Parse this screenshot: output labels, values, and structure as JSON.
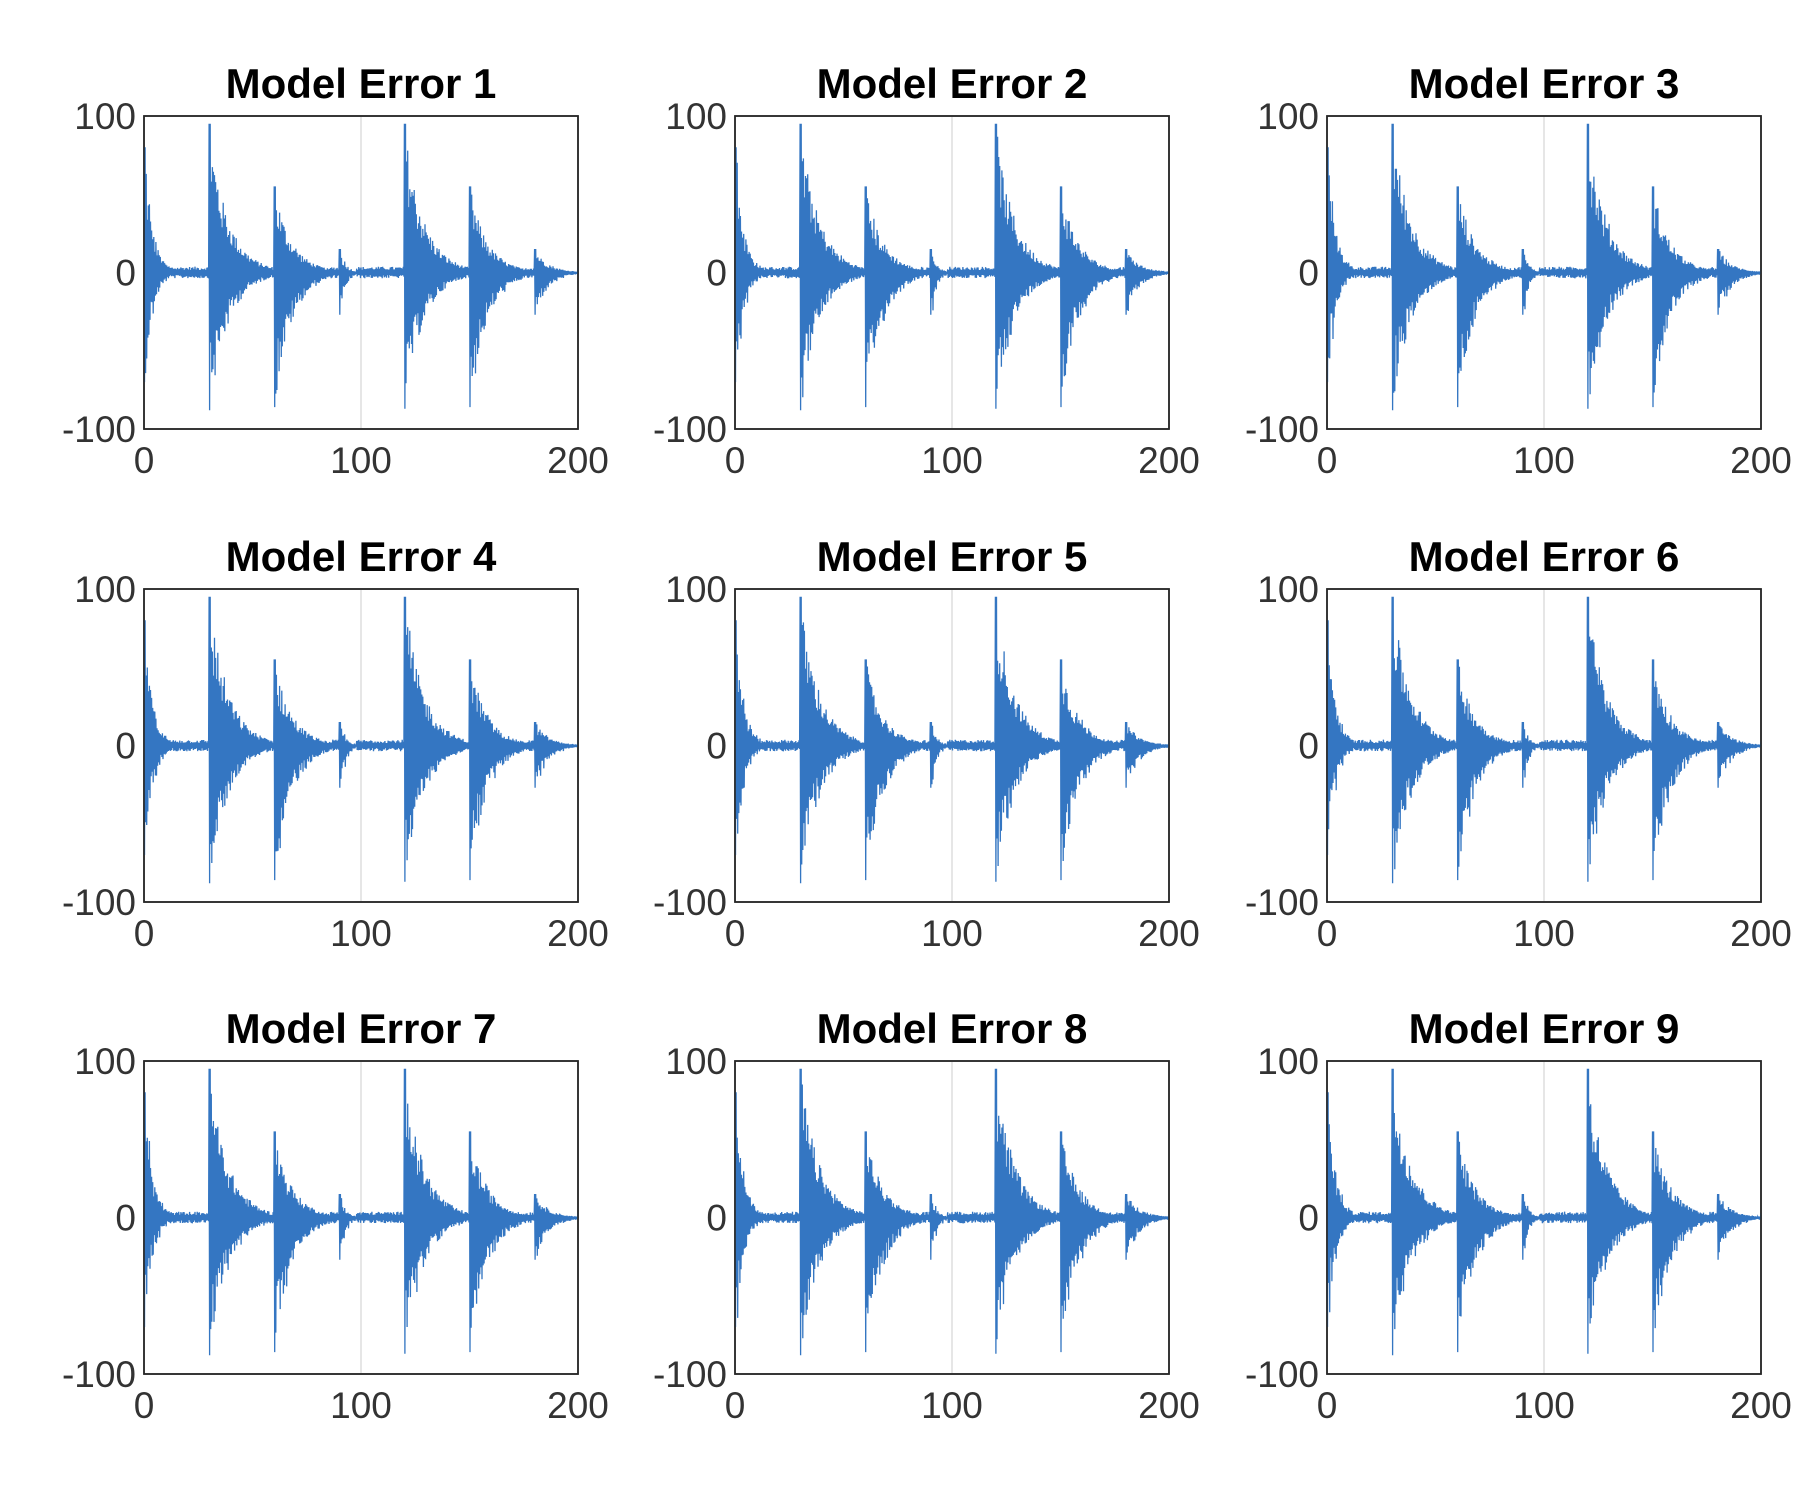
{
  "figure": {
    "background": "#ffffff",
    "rows": 3,
    "cols": 3
  },
  "chart_data": [
    {
      "type": "line",
      "title": "Model Error 1",
      "xlabel": "",
      "ylabel": "",
      "xlim": [
        0,
        200
      ],
      "ylim": [
        -100,
        100
      ],
      "xticks": [
        "0",
        "100",
        "200"
      ],
      "yticks": [
        "100",
        "0",
        "-100"
      ],
      "grid": "x-only",
      "series": [
        {
          "color": "#3476c2",
          "samples_per_unit": 4,
          "bursts": [
            {
              "x": 0,
              "peak": 80,
              "trough": -70,
              "len": 12
            },
            {
              "x": 30,
              "peak": 95,
              "trough": -88,
              "len": 28
            },
            {
              "x": 60,
              "peak": 55,
              "trough": -86,
              "len": 26
            },
            {
              "x": 90,
              "peak": 15,
              "trough": -27,
              "len": 8
            },
            {
              "x": 120,
              "peak": 95,
              "trough": -87,
              "len": 28
            },
            {
              "x": 150,
              "peak": 55,
              "trough": -86,
              "len": 26
            },
            {
              "x": 180,
              "peak": 15,
              "trough": -27,
              "len": 20
            }
          ]
        }
      ]
    },
    {
      "type": "line",
      "title": "Model Error 2",
      "xlabel": "",
      "ylabel": "",
      "xlim": [
        0,
        200
      ],
      "ylim": [
        -100,
        100
      ],
      "xticks": [
        "0",
        "100",
        "200"
      ],
      "yticks": [
        "100",
        "0",
        "-100"
      ],
      "grid": "x-only",
      "series": [
        {
          "color": "#3476c2",
          "samples_per_unit": 4,
          "bursts": [
            {
              "x": 0,
              "peak": 80,
              "trough": -70,
              "len": 12
            },
            {
              "x": 30,
              "peak": 95,
              "trough": -88,
              "len": 28
            },
            {
              "x": 60,
              "peak": 55,
              "trough": -86,
              "len": 26
            },
            {
              "x": 90,
              "peak": 15,
              "trough": -27,
              "len": 8
            },
            {
              "x": 120,
              "peak": 95,
              "trough": -87,
              "len": 28
            },
            {
              "x": 150,
              "peak": 55,
              "trough": -86,
              "len": 26
            },
            {
              "x": 180,
              "peak": 15,
              "trough": -27,
              "len": 20
            }
          ]
        }
      ]
    },
    {
      "type": "line",
      "title": "Model Error 3",
      "xlabel": "",
      "ylabel": "",
      "xlim": [
        0,
        200
      ],
      "ylim": [
        -100,
        100
      ],
      "xticks": [
        "0",
        "100",
        "200"
      ],
      "yticks": [
        "100",
        "0",
        "-100"
      ],
      "grid": "x-only",
      "series": [
        {
          "color": "#3476c2",
          "samples_per_unit": 4,
          "bursts": [
            {
              "x": 0,
              "peak": 80,
              "trough": -70,
              "len": 12
            },
            {
              "x": 30,
              "peak": 95,
              "trough": -88,
              "len": 28
            },
            {
              "x": 60,
              "peak": 55,
              "trough": -86,
              "len": 26
            },
            {
              "x": 90,
              "peak": 15,
              "trough": -27,
              "len": 8
            },
            {
              "x": 120,
              "peak": 95,
              "trough": -87,
              "len": 28
            },
            {
              "x": 150,
              "peak": 55,
              "trough": -86,
              "len": 26
            },
            {
              "x": 180,
              "peak": 15,
              "trough": -27,
              "len": 20
            }
          ]
        }
      ]
    },
    {
      "type": "line",
      "title": "Model Error 4",
      "xlabel": "",
      "ylabel": "",
      "xlim": [
        0,
        200
      ],
      "ylim": [
        -100,
        100
      ],
      "xticks": [
        "0",
        "100",
        "200"
      ],
      "yticks": [
        "100",
        "0",
        "-100"
      ],
      "grid": "x-only",
      "series": [
        {
          "color": "#3476c2",
          "samples_per_unit": 4,
          "bursts": [
            {
              "x": 0,
              "peak": 80,
              "trough": -70,
              "len": 12
            },
            {
              "x": 30,
              "peak": 95,
              "trough": -88,
              "len": 28
            },
            {
              "x": 60,
              "peak": 55,
              "trough": -86,
              "len": 26
            },
            {
              "x": 90,
              "peak": 15,
              "trough": -27,
              "len": 8
            },
            {
              "x": 120,
              "peak": 95,
              "trough": -87,
              "len": 28
            },
            {
              "x": 150,
              "peak": 55,
              "trough": -86,
              "len": 26
            },
            {
              "x": 180,
              "peak": 15,
              "trough": -27,
              "len": 20
            }
          ]
        }
      ]
    },
    {
      "type": "line",
      "title": "Model Error 5",
      "xlabel": "",
      "ylabel": "",
      "xlim": [
        0,
        200
      ],
      "ylim": [
        -100,
        100
      ],
      "xticks": [
        "0",
        "100",
        "200"
      ],
      "yticks": [
        "100",
        "0",
        "-100"
      ],
      "grid": "x-only",
      "series": [
        {
          "color": "#3476c2",
          "samples_per_unit": 4,
          "bursts": [
            {
              "x": 0,
              "peak": 80,
              "trough": -70,
              "len": 12
            },
            {
              "x": 30,
              "peak": 95,
              "trough": -88,
              "len": 28
            },
            {
              "x": 60,
              "peak": 55,
              "trough": -86,
              "len": 26
            },
            {
              "x": 90,
              "peak": 15,
              "trough": -27,
              "len": 8
            },
            {
              "x": 120,
              "peak": 95,
              "trough": -87,
              "len": 28
            },
            {
              "x": 150,
              "peak": 55,
              "trough": -86,
              "len": 26
            },
            {
              "x": 180,
              "peak": 15,
              "trough": -27,
              "len": 20
            }
          ]
        }
      ]
    },
    {
      "type": "line",
      "title": "Model Error 6",
      "xlabel": "",
      "ylabel": "",
      "xlim": [
        0,
        200
      ],
      "ylim": [
        -100,
        100
      ],
      "xticks": [
        "0",
        "100",
        "200"
      ],
      "yticks": [
        "100",
        "0",
        "-100"
      ],
      "grid": "x-only",
      "series": [
        {
          "color": "#3476c2",
          "samples_per_unit": 4,
          "bursts": [
            {
              "x": 0,
              "peak": 80,
              "trough": -70,
              "len": 12
            },
            {
              "x": 30,
              "peak": 95,
              "trough": -88,
              "len": 28
            },
            {
              "x": 60,
              "peak": 55,
              "trough": -86,
              "len": 26
            },
            {
              "x": 90,
              "peak": 15,
              "trough": -27,
              "len": 8
            },
            {
              "x": 120,
              "peak": 95,
              "trough": -87,
              "len": 28
            },
            {
              "x": 150,
              "peak": 55,
              "trough": -86,
              "len": 26
            },
            {
              "x": 180,
              "peak": 15,
              "trough": -27,
              "len": 20
            }
          ]
        }
      ]
    },
    {
      "type": "line",
      "title": "Model Error 7",
      "xlabel": "",
      "ylabel": "",
      "xlim": [
        0,
        200
      ],
      "ylim": [
        -100,
        100
      ],
      "xticks": [
        "0",
        "100",
        "200"
      ],
      "yticks": [
        "100",
        "0",
        "-100"
      ],
      "grid": "x-only",
      "series": [
        {
          "color": "#3476c2",
          "samples_per_unit": 4,
          "bursts": [
            {
              "x": 0,
              "peak": 80,
              "trough": -70,
              "len": 12
            },
            {
              "x": 30,
              "peak": 95,
              "trough": -88,
              "len": 28
            },
            {
              "x": 60,
              "peak": 55,
              "trough": -86,
              "len": 26
            },
            {
              "x": 90,
              "peak": 15,
              "trough": -27,
              "len": 8
            },
            {
              "x": 120,
              "peak": 95,
              "trough": -87,
              "len": 28
            },
            {
              "x": 150,
              "peak": 55,
              "trough": -86,
              "len": 26
            },
            {
              "x": 180,
              "peak": 15,
              "trough": -27,
              "len": 20
            }
          ]
        }
      ]
    },
    {
      "type": "line",
      "title": "Model Error 8",
      "xlabel": "",
      "ylabel": "",
      "xlim": [
        0,
        200
      ],
      "ylim": [
        -100,
        100
      ],
      "xticks": [
        "0",
        "100",
        "200"
      ],
      "yticks": [
        "100",
        "0",
        "-100"
      ],
      "grid": "x-only",
      "series": [
        {
          "color": "#3476c2",
          "samples_per_unit": 4,
          "bursts": [
            {
              "x": 0,
              "peak": 80,
              "trough": -70,
              "len": 12
            },
            {
              "x": 30,
              "peak": 95,
              "trough": -88,
              "len": 28
            },
            {
              "x": 60,
              "peak": 55,
              "trough": -86,
              "len": 26
            },
            {
              "x": 90,
              "peak": 15,
              "trough": -27,
              "len": 8
            },
            {
              "x": 120,
              "peak": 95,
              "trough": -87,
              "len": 28
            },
            {
              "x": 150,
              "peak": 55,
              "trough": -86,
              "len": 26
            },
            {
              "x": 180,
              "peak": 15,
              "trough": -27,
              "len": 20
            }
          ]
        }
      ]
    },
    {
      "type": "line",
      "title": "Model Error 9",
      "xlabel": "",
      "ylabel": "",
      "xlim": [
        0,
        200
      ],
      "ylim": [
        -100,
        100
      ],
      "xticks": [
        "0",
        "100",
        "200"
      ],
      "yticks": [
        "100",
        "0",
        "-100"
      ],
      "grid": "x-only",
      "series": [
        {
          "color": "#3476c2",
          "samples_per_unit": 4,
          "bursts": [
            {
              "x": 0,
              "peak": 80,
              "trough": -70,
              "len": 12
            },
            {
              "x": 30,
              "peak": 95,
              "trough": -88,
              "len": 28
            },
            {
              "x": 60,
              "peak": 55,
              "trough": -86,
              "len": 26
            },
            {
              "x": 90,
              "peak": 15,
              "trough": -27,
              "len": 8
            },
            {
              "x": 120,
              "peak": 95,
              "trough": -87,
              "len": 28
            },
            {
              "x": 150,
              "peak": 55,
              "trough": -86,
              "len": 26
            },
            {
              "x": 180,
              "peak": 15,
              "trough": -27,
              "len": 20
            }
          ]
        }
      ]
    }
  ]
}
